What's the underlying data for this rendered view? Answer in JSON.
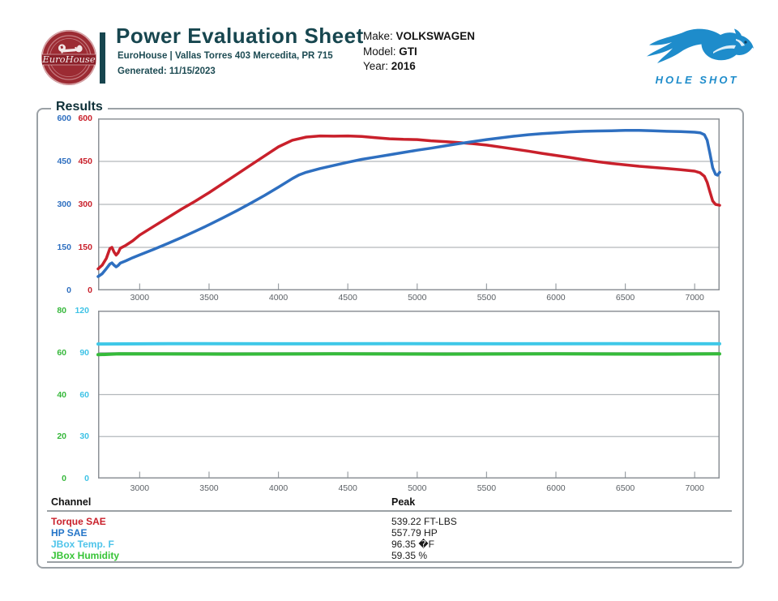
{
  "header": {
    "logo_brand": "EuroHouse",
    "title": "Power Evaluation Sheet",
    "subtitle": "EuroHouse | Vallas Torres 403 Mercedita, PR 715",
    "generated": "Generated: 11/15/2023",
    "vehicle": {
      "make_label": "Make: ",
      "make": "VOLKSWAGEN",
      "model_label": "Model: ",
      "model": "GTI",
      "year_label": "Year: ",
      "year": "2016"
    },
    "holeshot_text": "HOLE SHOT",
    "brand_teal": "#17464f",
    "holeshot_blue": "#1e8ccb",
    "logo_red": "#9c2b33"
  },
  "results_legend": "Results",
  "chart_data": [
    {
      "type": "line",
      "title": "Power / Torque vs RPM",
      "x_range": [
        2700,
        7180
      ],
      "x_ticks": [
        3000,
        3500,
        4000,
        4500,
        5000,
        5500,
        6000,
        6500,
        7000
      ],
      "axes": [
        {
          "name": "HP SAE",
          "side": "outer-left",
          "color": "#2e6fc0",
          "range": [
            0,
            600
          ],
          "ticks": [
            600,
            450,
            300,
            150,
            0
          ]
        },
        {
          "name": "Torque SAE",
          "side": "inner-left",
          "color": "#c9202b",
          "range": [
            0,
            600
          ],
          "ticks": [
            600,
            450,
            300,
            150,
            0
          ]
        }
      ],
      "gridlines": {
        "axis": 1,
        "values": [
          450,
          300,
          150
        ]
      },
      "series": [
        {
          "name": "Torque SAE",
          "color": "#c9202b",
          "width": 3.5,
          "range": [
            0,
            600
          ],
          "points": [
            [
              2700,
              75
            ],
            [
              2730,
              88
            ],
            [
              2760,
              112
            ],
            [
              2785,
              146
            ],
            [
              2800,
              150
            ],
            [
              2815,
              134
            ],
            [
              2830,
              123
            ],
            [
              2845,
              131
            ],
            [
              2860,
              147
            ],
            [
              2880,
              152
            ],
            [
              2900,
              157
            ],
            [
              2950,
              173
            ],
            [
              3000,
              193
            ],
            [
              3100,
              223
            ],
            [
              3200,
              253
            ],
            [
              3300,
              283
            ],
            [
              3400,
              311
            ],
            [
              3500,
              341
            ],
            [
              3600,
              373
            ],
            [
              3700,
              405
            ],
            [
              3800,
              437
            ],
            [
              3900,
              469
            ],
            [
              4000,
              501
            ],
            [
              4100,
              524
            ],
            [
              4200,
              535
            ],
            [
              4300,
              539
            ],
            [
              4400,
              538
            ],
            [
              4500,
              539
            ],
            [
              4600,
              537
            ],
            [
              4700,
              533
            ],
            [
              4800,
              529
            ],
            [
              4900,
              527
            ],
            [
              5000,
              526
            ],
            [
              5100,
              522
            ],
            [
              5200,
              519
            ],
            [
              5300,
              516
            ],
            [
              5400,
              512
            ],
            [
              5500,
              507
            ],
            [
              5600,
              500
            ],
            [
              5700,
              493
            ],
            [
              5800,
              486
            ],
            [
              5900,
              478
            ],
            [
              6000,
              471
            ],
            [
              6100,
              464
            ],
            [
              6200,
              456
            ],
            [
              6300,
              449
            ],
            [
              6400,
              443
            ],
            [
              6500,
              438
            ],
            [
              6600,
              433
            ],
            [
              6700,
              429
            ],
            [
              6800,
              425
            ],
            [
              6900,
              421
            ],
            [
              7000,
              416
            ],
            [
              7040,
              410
            ],
            [
              7070,
              398
            ],
            [
              7090,
              377
            ],
            [
              7110,
              344
            ],
            [
              7130,
              312
            ],
            [
              7150,
              300
            ],
            [
              7180,
              297
            ]
          ]
        },
        {
          "name": "HP SAE",
          "color": "#2e6fc0",
          "width": 3.5,
          "range": [
            0,
            600
          ],
          "points": [
            [
              2700,
              48
            ],
            [
              2730,
              58
            ],
            [
              2760,
              76
            ],
            [
              2785,
              92
            ],
            [
              2800,
              96
            ],
            [
              2815,
              88
            ],
            [
              2830,
              82
            ],
            [
              2845,
              87
            ],
            [
              2860,
              95
            ],
            [
              2880,
              99
            ],
            [
              2900,
              103
            ],
            [
              2950,
              114
            ],
            [
              3000,
              124
            ],
            [
              3100,
              143
            ],
            [
              3200,
              163
            ],
            [
              3300,
              184
            ],
            [
              3400,
              206
            ],
            [
              3500,
              229
            ],
            [
              3600,
              253
            ],
            [
              3700,
              278
            ],
            [
              3800,
              304
            ],
            [
              3900,
              331
            ],
            [
              4000,
              360
            ],
            [
              4100,
              390
            ],
            [
              4150,
              403
            ],
            [
              4200,
              412
            ],
            [
              4300,
              425
            ],
            [
              4400,
              436
            ],
            [
              4500,
              447
            ],
            [
              4600,
              457
            ],
            [
              4700,
              465
            ],
            [
              4800,
              473
            ],
            [
              4900,
              481
            ],
            [
              5000,
              489
            ],
            [
              5100,
              496
            ],
            [
              5200,
              504
            ],
            [
              5300,
              512
            ],
            [
              5400,
              519
            ],
            [
              5500,
              526
            ],
            [
              5600,
              532
            ],
            [
              5700,
              538
            ],
            [
              5800,
              543
            ],
            [
              5900,
              547
            ],
            [
              6000,
              550
            ],
            [
              6100,
              553
            ],
            [
              6200,
              555
            ],
            [
              6300,
              556
            ],
            [
              6400,
              557
            ],
            [
              6500,
              558
            ],
            [
              6600,
              558
            ],
            [
              6700,
              557
            ],
            [
              6800,
              555
            ],
            [
              6900,
              554
            ],
            [
              7000,
              552
            ],
            [
              7040,
              550
            ],
            [
              7070,
              543
            ],
            [
              7090,
              524
            ],
            [
              7110,
              478
            ],
            [
              7130,
              428
            ],
            [
              7150,
              405
            ],
            [
              7165,
              402
            ],
            [
              7180,
              412
            ]
          ]
        }
      ]
    },
    {
      "type": "line",
      "title": "JBox Environment vs RPM",
      "x_range": [
        2700,
        7180
      ],
      "x_ticks": [
        3000,
        3500,
        4000,
        4500,
        5000,
        5500,
        6000,
        6500,
        7000
      ],
      "axes": [
        {
          "name": "JBox Humidity",
          "side": "outer-left",
          "color": "#37b83c",
          "range": [
            0,
            80
          ],
          "ticks": [
            80,
            60,
            40,
            20,
            0
          ]
        },
        {
          "name": "JBox Temp. F",
          "side": "inner-left",
          "color": "#3fc3e6",
          "range": [
            0,
            120
          ],
          "ticks": [
            120,
            90,
            60,
            30,
            0
          ]
        }
      ],
      "gridlines": {
        "axis": 1,
        "values": [
          90,
          60,
          30
        ]
      },
      "series": [
        {
          "name": "JBox Temp. F",
          "color": "#3fc8e8",
          "width": 4,
          "range": [
            0,
            120
          ],
          "points": [
            [
              2700,
              96.2
            ],
            [
              3200,
              96.4
            ],
            [
              4000,
              96.3
            ],
            [
              4800,
              96.4
            ],
            [
              5600,
              96.3
            ],
            [
              6400,
              96.4
            ],
            [
              7180,
              96.3
            ]
          ]
        },
        {
          "name": "JBox Humidity",
          "color": "#35bb3a",
          "width": 4,
          "range": [
            0,
            80
          ],
          "points": [
            [
              2700,
              59.0
            ],
            [
              2850,
              59.4
            ],
            [
              3600,
              59.3
            ],
            [
              4400,
              59.4
            ],
            [
              5200,
              59.3
            ],
            [
              6000,
              59.4
            ],
            [
              6800,
              59.3
            ],
            [
              7180,
              59.4
            ]
          ]
        }
      ]
    }
  ],
  "table": {
    "channel_header": "Channel",
    "peak_header": "Peak",
    "rows": [
      {
        "channel": "Torque SAE",
        "color": "#c9202b",
        "peak": "539.22 FT-LBS"
      },
      {
        "channel": "HP SAE",
        "color": "#2575c8",
        "peak": "557.79 HP"
      },
      {
        "channel": "JBox Temp. F",
        "color": "#4ec4ea",
        "peak": "96.35 �F"
      },
      {
        "channel": "JBox Humidity",
        "color": "#37c437",
        "peak": "59.35 %"
      }
    ]
  }
}
